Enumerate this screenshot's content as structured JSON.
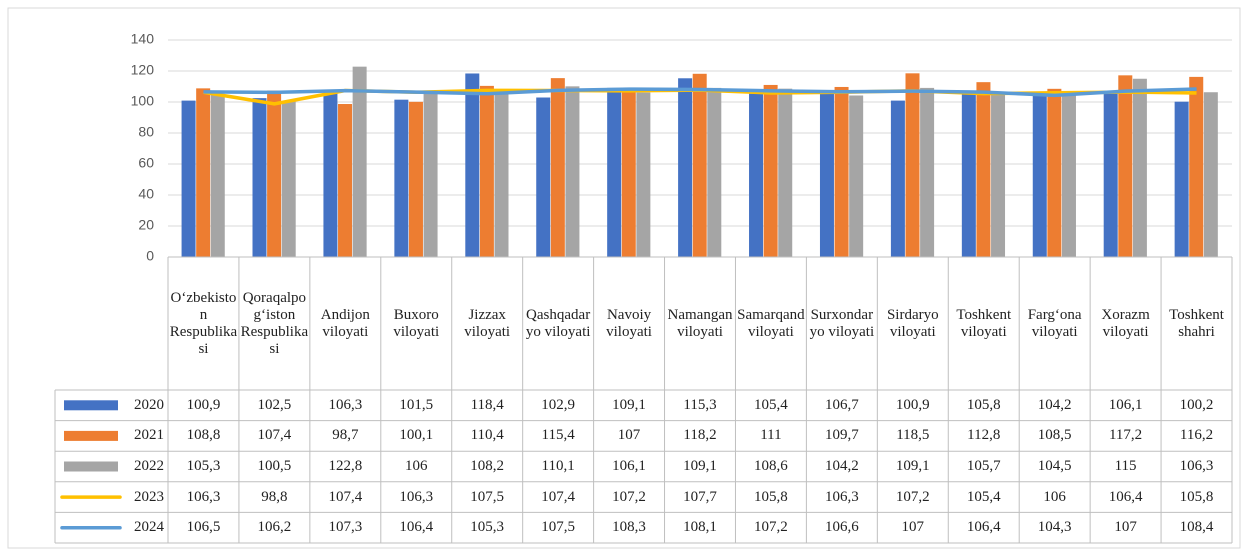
{
  "chart_data": {
    "type": "bar",
    "categories": [
      "O‘zbekiston Respublikasi",
      "Qoraqalpog‘iston Respublikasi",
      "Andijon viloyati",
      "Buxoro viloyati",
      "Jizzax viloyati",
      "Qashqadaryo viloyati",
      "Navoiy viloyati",
      "Namangan viloyati",
      "Samarqand viloyati",
      "Surxondaryo viloyati",
      "Sirdaryo viloyati",
      "Toshkent viloyati",
      "Farg‘ona viloyati",
      "Xorazm viloyati",
      "Toshkent shahri"
    ],
    "ylim": [
      0,
      140
    ],
    "yticks": [
      0,
      20,
      40,
      60,
      80,
      100,
      120,
      140
    ],
    "grid": true,
    "series": [
      {
        "name": "2020",
        "type": "bar",
        "color": "#4472c4",
        "values": [
          100.9,
          102.5,
          106.3,
          101.5,
          118.4,
          102.9,
          109.1,
          115.3,
          105.4,
          106.7,
          100.9,
          105.8,
          104.2,
          106.1,
          100.2
        ],
        "value_labels": [
          "100,9",
          "102,5",
          "106,3",
          "101,5",
          "118,4",
          "102,9",
          "109,1",
          "115,3",
          "105,4",
          "106,7",
          "100,9",
          "105,8",
          "104,2",
          "106,1",
          "100,2"
        ]
      },
      {
        "name": "2021",
        "type": "bar",
        "color": "#ed7d31",
        "values": [
          108.8,
          107.4,
          98.7,
          100.1,
          110.4,
          115.4,
          107,
          118.2,
          111,
          109.7,
          118.5,
          112.8,
          108.5,
          117.2,
          116.2
        ],
        "value_labels": [
          "108,8",
          "107,4",
          "98,7",
          "100,1",
          "110,4",
          "115,4",
          "107",
          "118,2",
          "111",
          "109,7",
          "118,5",
          "112,8",
          "108,5",
          "117,2",
          "116,2"
        ]
      },
      {
        "name": "2022",
        "type": "bar",
        "color": "#a5a5a5",
        "values": [
          105.3,
          100.5,
          122.8,
          106,
          108.2,
          110.1,
          106.1,
          109.1,
          108.6,
          104.2,
          109.1,
          105.7,
          104.5,
          115,
          106.3
        ],
        "value_labels": [
          "105,3",
          "100,5",
          "122,8",
          "106",
          "108,2",
          "110,1",
          "106,1",
          "109,1",
          "108,6",
          "104,2",
          "109,1",
          "105,7",
          "104,5",
          "115",
          "106,3"
        ]
      },
      {
        "name": "2023",
        "type": "line",
        "color": "#ffc000",
        "values": [
          106.3,
          98.8,
          107.4,
          106.3,
          107.5,
          107.4,
          107.2,
          107.7,
          105.8,
          106.3,
          107.2,
          105.4,
          106,
          106.4,
          105.8
        ],
        "value_labels": [
          "106,3",
          "98,8",
          "107,4",
          "106,3",
          "107,5",
          "107,4",
          "107,2",
          "107,7",
          "105,8",
          "106,3",
          "107,2",
          "105,4",
          "106",
          "106,4",
          "105,8"
        ]
      },
      {
        "name": "2024",
        "type": "line",
        "color": "#5b9bd5",
        "values": [
          106.5,
          106.2,
          107.3,
          106.4,
          105.3,
          107.5,
          108.3,
          108.1,
          107.2,
          106.6,
          107,
          106.4,
          104.3,
          107,
          108.4
        ],
        "value_labels": [
          "106,5",
          "106,2",
          "107,3",
          "106,4",
          "105,3",
          "107,5",
          "108,3",
          "108,1",
          "107,2",
          "106,6",
          "107",
          "106,4",
          "104,3",
          "107",
          "108,4"
        ]
      }
    ]
  }
}
